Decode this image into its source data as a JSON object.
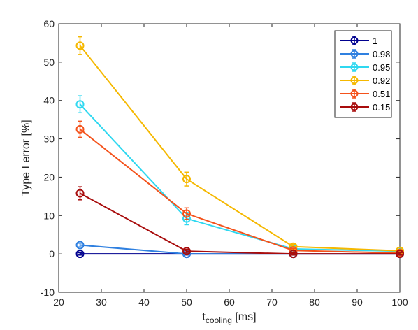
{
  "chart_data": {
    "type": "line",
    "title": "",
    "xlabel_main": "t",
    "xlabel_sub": "cooling",
    "xlabel_unit": " [ms]",
    "ylabel": "Type I error [%]",
    "xlim": [
      20,
      100
    ],
    "ylim": [
      -10,
      60
    ],
    "xticks": [
      20,
      30,
      40,
      50,
      60,
      70,
      80,
      90,
      100
    ],
    "yticks": [
      -10,
      0,
      10,
      20,
      30,
      40,
      50,
      60
    ],
    "grid": false,
    "legend_position": "top-right",
    "x": [
      25,
      50,
      75,
      100
    ],
    "series": [
      {
        "name": "1",
        "color": "#00008f",
        "values": [
          0.0,
          0.0,
          0.0,
          0.0
        ],
        "errors": [
          0.3,
          0.3,
          0.3,
          0.3
        ]
      },
      {
        "name": "0.98",
        "color": "#2f80e0",
        "values": [
          2.3,
          0.0,
          0.0,
          0.0
        ],
        "errors": [
          0.5,
          0.3,
          0.3,
          0.3
        ]
      },
      {
        "name": "0.95",
        "color": "#2fd8f0",
        "values": [
          39.0,
          9.2,
          1.3,
          0.7
        ],
        "errors": [
          2.2,
          1.6,
          0.5,
          0.4
        ]
      },
      {
        "name": "0.92",
        "color": "#f5b800",
        "values": [
          54.3,
          19.5,
          1.9,
          0.8
        ],
        "errors": [
          2.3,
          1.8,
          0.6,
          0.4
        ]
      },
      {
        "name": "0.51",
        "color": "#f4521b",
        "values": [
          32.5,
          10.5,
          0.9,
          0.2
        ],
        "errors": [
          2.1,
          1.5,
          0.5,
          0.3
        ]
      },
      {
        "name": "0.15",
        "color": "#a80c0c",
        "values": [
          15.8,
          0.7,
          0.0,
          0.0
        ],
        "errors": [
          1.7,
          0.5,
          0.3,
          0.3
        ]
      }
    ]
  }
}
